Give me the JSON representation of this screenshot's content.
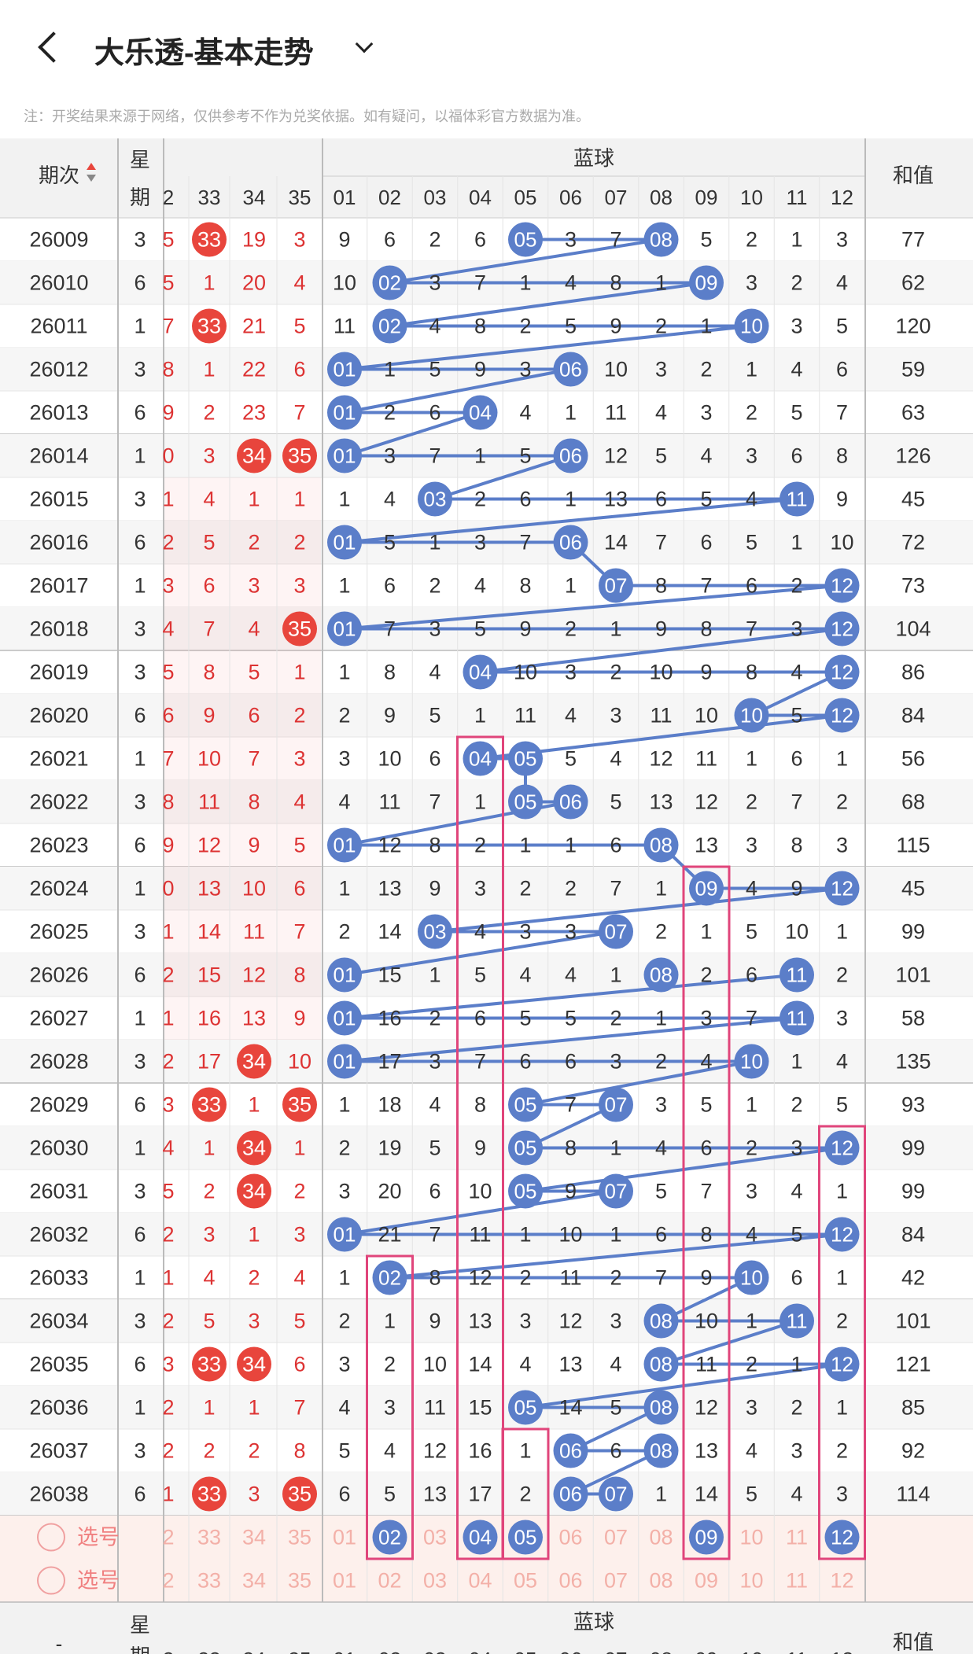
{
  "header": {
    "title": "大乐透-基本走势"
  },
  "notice": "注：开奖结果来源于网络，仅供参考不作为兑奖依据。如有疑问，以福体彩官方数据为准。",
  "table": {
    "col_period": "期次",
    "col_weekday_1": "星",
    "col_weekday_2": "期",
    "col_sum": "和值",
    "blue_group": "蓝球",
    "front_headers": [
      "2",
      "33",
      "34",
      "35"
    ],
    "blue_headers": [
      "01",
      "02",
      "03",
      "04",
      "05",
      "06",
      "07",
      "08",
      "09",
      "10",
      "11",
      "12"
    ],
    "rows": [
      {
        "p": "26009",
        "w": "3",
        "f": [
          "5",
          "33",
          "19",
          "3"
        ],
        "b": [
          "9",
          "6",
          "2",
          "6",
          "05",
          "3",
          "7",
          "08",
          "5",
          "2",
          "1",
          "3"
        ],
        "s": "77"
      },
      {
        "p": "26010",
        "w": "6",
        "f": [
          "5",
          "1",
          "20",
          "4"
        ],
        "b": [
          "10",
          "02",
          "3",
          "7",
          "1",
          "4",
          "8",
          "1",
          "09",
          "3",
          "2",
          "4"
        ],
        "s": "62"
      },
      {
        "p": "26011",
        "w": "1",
        "f": [
          "7",
          "33",
          "21",
          "5"
        ],
        "b": [
          "11",
          "02",
          "4",
          "8",
          "2",
          "5",
          "9",
          "2",
          "1",
          "10",
          "3",
          "5"
        ],
        "s": "120"
      },
      {
        "p": "26012",
        "w": "3",
        "f": [
          "8",
          "1",
          "22",
          "6"
        ],
        "b": [
          "01",
          "1",
          "5",
          "9",
          "3",
          "06",
          "10",
          "3",
          "2",
          "1",
          "4",
          "6"
        ],
        "s": "59"
      },
      {
        "p": "26013",
        "w": "6",
        "f": [
          "9",
          "2",
          "23",
          "7"
        ],
        "b": [
          "01",
          "2",
          "6",
          "04",
          "4",
          "1",
          "11",
          "4",
          "3",
          "2",
          "5",
          "7"
        ],
        "s": "63"
      },
      {
        "p": "26014",
        "w": "1",
        "f": [
          "0",
          "3",
          "34",
          "35"
        ],
        "b": [
          "01",
          "3",
          "7",
          "1",
          "5",
          "06",
          "12",
          "5",
          "4",
          "3",
          "6",
          "8"
        ],
        "s": "126"
      },
      {
        "p": "26015",
        "w": "3",
        "f": [
          "1",
          "4",
          "1",
          "1"
        ],
        "b": [
          "1",
          "4",
          "03",
          "2",
          "6",
          "1",
          "13",
          "6",
          "5",
          "4",
          "11",
          "9"
        ],
        "s": "45"
      },
      {
        "p": "26016",
        "w": "6",
        "f": [
          "2",
          "5",
          "2",
          "2"
        ],
        "b": [
          "01",
          "5",
          "1",
          "3",
          "7",
          "06",
          "14",
          "7",
          "6",
          "5",
          "1",
          "10"
        ],
        "s": "72"
      },
      {
        "p": "26017",
        "w": "1",
        "f": [
          "3",
          "6",
          "3",
          "3"
        ],
        "b": [
          "1",
          "6",
          "2",
          "4",
          "8",
          "1",
          "07",
          "8",
          "7",
          "6",
          "2",
          "12"
        ],
        "s": "73"
      },
      {
        "p": "26018",
        "w": "3",
        "f": [
          "4",
          "7",
          "4",
          "35"
        ],
        "b": [
          "01",
          "7",
          "3",
          "5",
          "9",
          "2",
          "1",
          "9",
          "8",
          "7",
          "3",
          "12"
        ],
        "s": "104"
      },
      {
        "p": "26019",
        "w": "3",
        "f": [
          "5",
          "8",
          "5",
          "1"
        ],
        "b": [
          "1",
          "8",
          "4",
          "04",
          "10",
          "3",
          "2",
          "10",
          "9",
          "8",
          "4",
          "12"
        ],
        "s": "86"
      },
      {
        "p": "26020",
        "w": "6",
        "f": [
          "6",
          "9",
          "6",
          "2"
        ],
        "b": [
          "2",
          "9",
          "5",
          "1",
          "11",
          "4",
          "3",
          "11",
          "10",
          "10",
          "5",
          "12"
        ],
        "s": "84"
      },
      {
        "p": "26021",
        "w": "1",
        "f": [
          "7",
          "10",
          "7",
          "3"
        ],
        "b": [
          "3",
          "10",
          "6",
          "04",
          "05",
          "5",
          "4",
          "12",
          "11",
          "1",
          "6",
          "1"
        ],
        "s": "56"
      },
      {
        "p": "26022",
        "w": "3",
        "f": [
          "8",
          "11",
          "8",
          "4"
        ],
        "b": [
          "4",
          "11",
          "7",
          "1",
          "05",
          "06",
          "5",
          "13",
          "12",
          "2",
          "7",
          "2"
        ],
        "s": "68"
      },
      {
        "p": "26023",
        "w": "6",
        "f": [
          "9",
          "12",
          "9",
          "5"
        ],
        "b": [
          "01",
          "12",
          "8",
          "2",
          "1",
          "1",
          "6",
          "08",
          "13",
          "3",
          "8",
          "3"
        ],
        "s": "115"
      },
      {
        "p": "26024",
        "w": "1",
        "f": [
          "0",
          "13",
          "10",
          "6"
        ],
        "b": [
          "1",
          "13",
          "9",
          "3",
          "2",
          "2",
          "7",
          "1",
          "09",
          "4",
          "9",
          "12"
        ],
        "s": "45"
      },
      {
        "p": "26025",
        "w": "3",
        "f": [
          "1",
          "14",
          "11",
          "7"
        ],
        "b": [
          "2",
          "14",
          "03",
          "4",
          "3",
          "3",
          "07",
          "2",
          "1",
          "5",
          "10",
          "1"
        ],
        "s": "99"
      },
      {
        "p": "26026",
        "w": "6",
        "f": [
          "2",
          "15",
          "12",
          "8"
        ],
        "b": [
          "01",
          "15",
          "1",
          "5",
          "4",
          "4",
          "1",
          "08",
          "2",
          "6",
          "11",
          "2"
        ],
        "s": "101"
      },
      {
        "p": "26027",
        "w": "1",
        "f": [
          "1",
          "16",
          "13",
          "9"
        ],
        "b": [
          "01",
          "16",
          "2",
          "6",
          "5",
          "5",
          "2",
          "1",
          "3",
          "7",
          "11",
          "3"
        ],
        "s": "58"
      },
      {
        "p": "26028",
        "w": "3",
        "f": [
          "2",
          "17",
          "34",
          "10"
        ],
        "b": [
          "01",
          "17",
          "3",
          "7",
          "6",
          "6",
          "3",
          "2",
          "4",
          "10",
          "1",
          "4"
        ],
        "s": "135"
      },
      {
        "p": "26029",
        "w": "6",
        "f": [
          "3",
          "33",
          "1",
          "35"
        ],
        "b": [
          "1",
          "18",
          "4",
          "8",
          "05",
          "7",
          "07",
          "3",
          "5",
          "1",
          "2",
          "5"
        ],
        "s": "93"
      },
      {
        "p": "26030",
        "w": "1",
        "f": [
          "4",
          "1",
          "34",
          "1"
        ],
        "b": [
          "2",
          "19",
          "5",
          "9",
          "05",
          "8",
          "1",
          "4",
          "6",
          "2",
          "3",
          "12"
        ],
        "s": "99"
      },
      {
        "p": "26031",
        "w": "3",
        "f": [
          "5",
          "2",
          "34",
          "2"
        ],
        "b": [
          "3",
          "20",
          "6",
          "10",
          "05",
          "9",
          "07",
          "5",
          "7",
          "3",
          "4",
          "1"
        ],
        "s": "99"
      },
      {
        "p": "26032",
        "w": "6",
        "f": [
          "2",
          "3",
          "1",
          "3"
        ],
        "b": [
          "01",
          "21",
          "7",
          "11",
          "1",
          "10",
          "1",
          "6",
          "8",
          "4",
          "5",
          "12"
        ],
        "s": "84"
      },
      {
        "p": "26033",
        "w": "1",
        "f": [
          "1",
          "4",
          "2",
          "4"
        ],
        "b": [
          "1",
          "02",
          "8",
          "12",
          "2",
          "11",
          "2",
          "7",
          "9",
          "10",
          "6",
          "1"
        ],
        "s": "42"
      },
      {
        "p": "26034",
        "w": "3",
        "f": [
          "2",
          "5",
          "3",
          "5"
        ],
        "b": [
          "2",
          "1",
          "9",
          "13",
          "3",
          "12",
          "3",
          "08",
          "10",
          "1",
          "11",
          "2"
        ],
        "s": "101"
      },
      {
        "p": "26035",
        "w": "6",
        "f": [
          "3",
          "33",
          "34",
          "6"
        ],
        "b": [
          "3",
          "2",
          "10",
          "14",
          "4",
          "13",
          "4",
          "08",
          "11",
          "2",
          "1",
          "12"
        ],
        "s": "121"
      },
      {
        "p": "26036",
        "w": "1",
        "f": [
          "2",
          "1",
          "1",
          "7"
        ],
        "b": [
          "4",
          "3",
          "11",
          "15",
          "05",
          "14",
          "5",
          "08",
          "12",
          "3",
          "2",
          "1"
        ],
        "s": "85"
      },
      {
        "p": "26037",
        "w": "3",
        "f": [
          "2",
          "2",
          "2",
          "8"
        ],
        "b": [
          "5",
          "4",
          "12",
          "16",
          "1",
          "06",
          "6",
          "08",
          "13",
          "4",
          "3",
          "2"
        ],
        "s": "92"
      },
      {
        "p": "26038",
        "w": "6",
        "f": [
          "1",
          "33",
          "3",
          "35"
        ],
        "b": [
          "6",
          "5",
          "13",
          "17",
          "2",
          "06",
          "07",
          "1",
          "14",
          "5",
          "4",
          "3"
        ],
        "s": "114"
      }
    ],
    "pick_label": "选号",
    "pick_front": [
      "2",
      "33",
      "34",
      "35"
    ],
    "pick_blue": [
      "01",
      "02",
      "03",
      "04",
      "05",
      "06",
      "07",
      "08",
      "09",
      "10",
      "11",
      "12"
    ],
    "pick_selected": [
      "02",
      "04",
      "05",
      "09",
      "12"
    ],
    "footer_dash": "-"
  },
  "colors": {
    "red_ball": "#e8453c",
    "blue_ball": "#5b7ec9",
    "blue_line": "#5b7ec9",
    "pink_box": "#e0457b",
    "header_bg": "#f2f2f2",
    "pick_bg": "#fdf0ec"
  }
}
